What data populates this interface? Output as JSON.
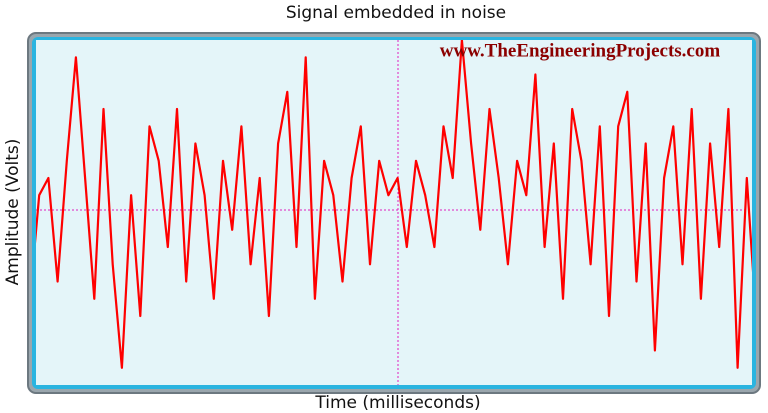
{
  "chart_data": {
    "type": "line",
    "title": "Signal embedded in noise",
    "x_label": "Time (milliseconds)",
    "y_label": "Amplitude (Volts)",
    "annotation": "www.TheEngineeringProjects.com",
    "x": [
      0,
      1,
      2,
      3,
      4,
      5,
      6,
      7,
      8,
      9,
      10,
      11,
      12,
      13,
      14,
      15,
      16,
      17,
      18,
      19,
      20,
      21,
      22,
      23,
      24,
      25,
      26,
      27,
      28,
      29,
      30,
      31,
      32,
      33,
      34,
      35,
      36,
      37,
      38,
      39,
      40,
      41,
      42,
      43,
      44,
      45,
      46,
      47,
      48,
      49,
      50,
      51,
      52,
      53,
      54,
      55,
      56,
      57,
      58,
      59,
      60,
      61,
      62,
      63,
      64,
      65,
      66,
      67,
      68,
      69,
      70,
      71,
      72,
      73,
      74,
      75,
      76,
      77,
      78,
      79
    ],
    "values": [
      -0.5,
      0.1,
      0.2,
      -0.4,
      0.3,
      0.9,
      0.2,
      -0.5,
      0.6,
      -0.3,
      -0.9,
      0.1,
      -0.6,
      0.5,
      0.3,
      -0.2,
      0.6,
      -0.4,
      0.4,
      0.1,
      -0.5,
      0.3,
      -0.1,
      0.5,
      -0.3,
      0.2,
      -0.6,
      0.4,
      0.7,
      -0.2,
      0.9,
      -0.5,
      0.3,
      0.1,
      -0.4,
      0.2,
      0.5,
      -0.3,
      0.3,
      0.1,
      0.2,
      -0.2,
      0.3,
      0.1,
      -0.2,
      0.5,
      0.2,
      1.0,
      0.4,
      -0.1,
      0.6,
      0.2,
      -0.3,
      0.3,
      0.1,
      0.8,
      -0.2,
      0.4,
      -0.5,
      0.6,
      0.3,
      -0.3,
      0.5,
      -0.6,
      0.5,
      0.7,
      -0.4,
      0.4,
      -0.8,
      0.2,
      0.5,
      -0.3,
      0.6,
      -0.5,
      0.4,
      -0.2,
      0.6,
      -0.9,
      0.2,
      -0.6
    ],
    "color": "#ff0000",
    "xlim": [
      0,
      79
    ],
    "ylim": [
      -1,
      1
    ]
  }
}
